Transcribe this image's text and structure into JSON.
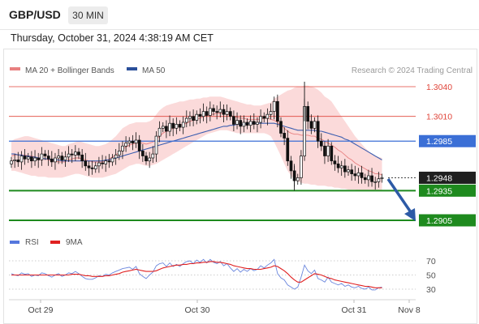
{
  "header": {
    "symbol": "GBP/USD",
    "timeframe": "30 MIN",
    "datetime": "Thursday, October 31, 2024 4:38:19 AM CET"
  },
  "chart_data": [
    {
      "type": "candlestick",
      "legend": [
        {
          "name": "MA 20 + Bollinger Bands",
          "color": "#e88080"
        },
        {
          "name": "MA 50",
          "color": "#2a4f9a"
        }
      ],
      "source": "Research © 2024 Trading Central",
      "ylim": [
        1.289,
        1.306
      ],
      "x_ticks": [
        "Oct 29",
        "Oct 30",
        "Oct 31",
        "Nov 8"
      ],
      "levels": [
        {
          "value": "1.3040",
          "kind": "resistance",
          "color": "#e0453a"
        },
        {
          "value": "1.3010",
          "kind": "resistance",
          "color": "#e0453a"
        },
        {
          "value": "1.2985",
          "kind": "pivot",
          "color": "#3b6fd6"
        },
        {
          "value": "1.2948",
          "kind": "last",
          "color": "#222222"
        },
        {
          "value": "1.2935",
          "kind": "support",
          "color": "#1e8a1e"
        },
        {
          "value": "1.2905",
          "kind": "support",
          "color": "#1e8a1e"
        }
      ],
      "close": [
        1.2965,
        1.2966,
        1.2964,
        1.297,
        1.2967,
        1.2969,
        1.2965,
        1.2968,
        1.2966,
        1.2972,
        1.297,
        1.2967,
        1.2964,
        1.2968,
        1.297,
        1.2966,
        1.2969,
        1.2972,
        1.2971,
        1.2974,
        1.2971,
        1.2965,
        1.296,
        1.2958,
        1.2957,
        1.296,
        1.2963,
        1.2962,
        1.2965,
        1.2964,
        1.2968,
        1.2971,
        1.2975,
        1.298,
        1.2983,
        1.2985,
        1.2983,
        1.2986,
        1.2975,
        1.297,
        1.2965,
        1.2968,
        1.2972,
        1.299,
        1.2998,
        1.3,
        1.2995,
        1.3003,
        1.2998,
        1.3002,
        1.2999,
        1.3004,
        1.3008,
        1.301,
        1.3006,
        1.3012,
        1.301,
        1.3015,
        1.3011,
        1.3018,
        1.3015,
        1.3014,
        1.3017,
        1.3012,
        1.3015,
        1.301,
        1.3002,
        1.3006,
        1.3,
        1.3004,
        1.3001,
        1.3005,
        1.3002,
        1.3004,
        1.301,
        1.3008,
        1.3012,
        1.3015,
        1.3025,
        1.3005,
        1.2993,
        1.2988,
        1.2965,
        1.2955,
        1.2945,
        1.2948,
        1.297,
        1.302,
        1.3005,
        1.2998,
        1.3005,
        1.2985,
        1.298,
        1.297,
        1.298,
        1.2965,
        1.2962,
        1.2958,
        1.296,
        1.2954,
        1.2956,
        1.2952,
        1.295,
        1.2953,
        1.2948,
        1.2946,
        1.295,
        1.2944,
        1.2944,
        1.2947,
        1.2948
      ],
      "bb_upper": [
        1.2985,
        1.2987,
        1.2988,
        1.2989,
        1.299,
        1.299,
        1.2989,
        1.2988,
        1.2987,
        1.2986,
        1.2985,
        1.2984,
        1.2983,
        1.2982,
        1.2981,
        1.298,
        1.298,
        1.2982,
        1.2983,
        1.2984,
        1.2985,
        1.2984,
        1.2983,
        1.2982,
        1.2981,
        1.298,
        1.298,
        1.2981,
        1.2982,
        1.2984,
        1.2987,
        1.299,
        1.2994,
        1.2998,
        1.3,
        1.3002,
        1.3003,
        1.3004,
        1.3004,
        1.3004,
        1.3004,
        1.3005,
        1.3007,
        1.3012,
        1.3016,
        1.3019,
        1.3021,
        1.3022,
        1.3023,
        1.3024,
        1.3025,
        1.3025,
        1.3026,
        1.3027,
        1.3027,
        1.3028,
        1.3028,
        1.3029,
        1.3029,
        1.303,
        1.303,
        1.303,
        1.303,
        1.3029,
        1.3028,
        1.3027,
        1.3026,
        1.3025,
        1.3024,
        1.3023,
        1.3022,
        1.3022,
        1.3021,
        1.3021,
        1.3021,
        1.3022,
        1.3023,
        1.3024,
        1.3028,
        1.303,
        1.3032,
        1.3034,
        1.3036,
        1.3037,
        1.3039,
        1.304,
        1.304,
        1.3041,
        1.3041,
        1.304,
        1.3039,
        1.3037,
        1.3034,
        1.303,
        1.3028,
        1.3025,
        1.302,
        1.3015,
        1.301,
        1.3005,
        1.3,
        1.2995,
        1.299,
        1.2986,
        1.2982,
        1.2978,
        1.2975,
        1.2972,
        1.297,
        1.2969,
        1.2968
      ],
      "bb_lower": [
        1.2955,
        1.2955,
        1.2954,
        1.2953,
        1.2952,
        1.2951,
        1.295,
        1.295,
        1.2949,
        1.2949,
        1.2949,
        1.2948,
        1.2948,
        1.2948,
        1.2948,
        1.2948,
        1.2949,
        1.295,
        1.2951,
        1.2952,
        1.2952,
        1.2951,
        1.295,
        1.2949,
        1.2948,
        1.2948,
        1.2948,
        1.2948,
        1.2949,
        1.295,
        1.2951,
        1.2952,
        1.2954,
        1.2956,
        1.2958,
        1.296,
        1.2961,
        1.2962,
        1.2962,
        1.2961,
        1.296,
        1.296,
        1.2961,
        1.2962,
        1.2964,
        1.2966,
        1.2968,
        1.297,
        1.2972,
        1.2974,
        1.2976,
        1.2978,
        1.298,
        1.2982,
        1.2984,
        1.2986,
        1.2988,
        1.299,
        1.2992,
        1.2993,
        1.2994,
        1.2995,
        1.2996,
        1.2996,
        1.2996,
        1.2995,
        1.2994,
        1.2993,
        1.2993,
        1.2993,
        1.2993,
        1.2993,
        1.2993,
        1.2993,
        1.2993,
        1.2993,
        1.2992,
        1.299,
        1.2984,
        1.2977,
        1.297,
        1.2962,
        1.2955,
        1.295,
        1.2946,
        1.2944,
        1.2943,
        1.2942,
        1.2942,
        1.2941,
        1.2941,
        1.294,
        1.294,
        1.294,
        1.2939,
        1.2939,
        1.2938,
        1.2938,
        1.2937,
        1.2937,
        1.2936,
        1.2936,
        1.2936,
        1.2935,
        1.2935,
        1.2935,
        1.2935,
        1.2935,
        1.2935,
        1.2935,
        1.2935
      ],
      "ma20": [
        1.297,
        1.2971,
        1.2971,
        1.2971,
        1.2971,
        1.297,
        1.297,
        1.2969,
        1.2968,
        1.2967,
        1.2967,
        1.2966,
        1.2965,
        1.2965,
        1.2964,
        1.2964,
        1.2964,
        1.2966,
        1.2967,
        1.2968,
        1.2968,
        1.2967,
        1.2966,
        1.2965,
        1.2964,
        1.2964,
        1.2964,
        1.2964,
        1.2965,
        1.2967,
        1.2969,
        1.2971,
        1.2974,
        1.2977,
        1.2979,
        1.2981,
        1.2982,
        1.2983,
        1.2983,
        1.2983,
        1.2982,
        1.2983,
        1.2984,
        1.2987,
        1.299,
        1.2993,
        1.2995,
        1.2996,
        1.2998,
        1.2999,
        1.3001,
        1.3002,
        1.3003,
        1.3005,
        1.3006,
        1.3007,
        1.3008,
        1.301,
        1.3011,
        1.3012,
        1.3012,
        1.3013,
        1.3013,
        1.3013,
        1.3012,
        1.3011,
        1.301,
        1.3009,
        1.3008,
        1.3008,
        1.3007,
        1.3007,
        1.3007,
        1.3007,
        1.3007,
        1.3008,
        1.3008,
        1.3007,
        1.3006,
        1.3004,
        1.3001,
        1.2998,
        1.2995,
        1.2993,
        1.2992,
        1.2992,
        1.2991,
        1.2991,
        1.2991,
        1.299,
        1.299,
        1.2988,
        1.2987,
        1.2985,
        1.2983,
        1.2981,
        1.2979,
        1.2976,
        1.2974,
        1.2971,
        1.2968,
        1.2966,
        1.2963,
        1.2961,
        1.2959,
        1.2957,
        1.2955,
        1.2954,
        1.2952,
        1.2952,
        1.2951
      ],
      "ma50": [
        1.2972,
        1.2972,
        1.2971,
        1.2971,
        1.297,
        1.297,
        1.2969,
        1.2969,
        1.2968,
        1.2968,
        1.2967,
        1.2967,
        1.2966,
        1.2966,
        1.2966,
        1.2965,
        1.2965,
        1.2965,
        1.2965,
        1.2965,
        1.2965,
        1.2965,
        1.2965,
        1.2965,
        1.2965,
        1.2965,
        1.2965,
        1.2965,
        1.2966,
        1.2966,
        1.2967,
        1.2968,
        1.2969,
        1.297,
        1.2971,
        1.2972,
        1.2973,
        1.2974,
        1.2975,
        1.2976,
        1.2977,
        1.2978,
        1.2979,
        1.298,
        1.2981,
        1.2982,
        1.2983,
        1.2984,
        1.2985,
        1.2986,
        1.2987,
        1.2988,
        1.2989,
        1.299,
        1.2991,
        1.2992,
        1.2993,
        1.2994,
        1.2995,
        1.2996,
        1.2997,
        1.2998,
        1.2999,
        1.3,
        1.3,
        1.3001,
        1.3001,
        1.3002,
        1.3002,
        1.3002,
        1.3003,
        1.3003,
        1.3003,
        1.3003,
        1.3003,
        1.3003,
        1.3003,
        1.3003,
        1.3003,
        1.3002,
        1.3001,
        1.3,
        1.2999,
        1.2998,
        1.2997,
        1.2996,
        1.2996,
        1.2996,
        1.2996,
        1.2996,
        1.2996,
        1.2995,
        1.2995,
        1.2994,
        1.2993,
        1.2992,
        1.2991,
        1.299,
        1.2989,
        1.2987,
        1.2986,
        1.2984,
        1.2982,
        1.298,
        1.2978,
        1.2976,
        1.2974,
        1.2972,
        1.297,
        1.2968,
        1.2966
      ]
    },
    {
      "type": "line",
      "legend": [
        {
          "name": "RSI",
          "color": "#5577dd"
        },
        {
          "name": "9MA",
          "color": "#e02020"
        }
      ],
      "ylim": [
        20,
        80
      ],
      "y_ticks": [
        "70",
        "50",
        "30"
      ],
      "rsi": [
        52,
        50,
        49,
        53,
        51,
        52,
        48,
        50,
        49,
        53,
        52,
        49,
        47,
        50,
        52,
        48,
        50,
        53,
        52,
        55,
        52,
        48,
        45,
        44,
        44,
        46,
        49,
        48,
        51,
        50,
        53,
        55,
        57,
        59,
        60,
        61,
        58,
        62,
        52,
        48,
        45,
        50,
        54,
        63,
        66,
        67,
        62,
        67,
        62,
        65,
        62,
        66,
        69,
        70,
        66,
        71,
        68,
        72,
        67,
        72,
        68,
        66,
        69,
        63,
        66,
        60,
        55,
        59,
        54,
        58,
        55,
        59,
        56,
        58,
        63,
        60,
        64,
        67,
        72,
        52,
        46,
        43,
        36,
        33,
        30,
        33,
        47,
        64,
        56,
        52,
        57,
        45,
        43,
        40,
        47,
        40,
        38,
        36,
        38,
        34,
        36,
        33,
        32,
        34,
        31,
        30,
        33,
        29,
        29,
        32,
        33
      ],
      "ma9": [
        50,
        50,
        50,
        50,
        50,
        50,
        50,
        50,
        50,
        50,
        50,
        50,
        50,
        50,
        50,
        50,
        50,
        50,
        51,
        51,
        51,
        50,
        49,
        49,
        48,
        48,
        48,
        48,
        49,
        49,
        50,
        51,
        52,
        54,
        55,
        56,
        57,
        58,
        57,
        56,
        55,
        55,
        55,
        56,
        58,
        60,
        61,
        62,
        63,
        64,
        64,
        65,
        65,
        66,
        66,
        67,
        67,
        68,
        68,
        69,
        69,
        68,
        68,
        67,
        66,
        65,
        63,
        62,
        61,
        60,
        59,
        59,
        58,
        58,
        58,
        59,
        60,
        61,
        63,
        62,
        59,
        56,
        52,
        47,
        43,
        40,
        40,
        43,
        46,
        49,
        52,
        51,
        50,
        48,
        46,
        45,
        43,
        42,
        41,
        40,
        39,
        38,
        37,
        36,
        35,
        34,
        34,
        33,
        32,
        32,
        32
      ]
    }
  ]
}
